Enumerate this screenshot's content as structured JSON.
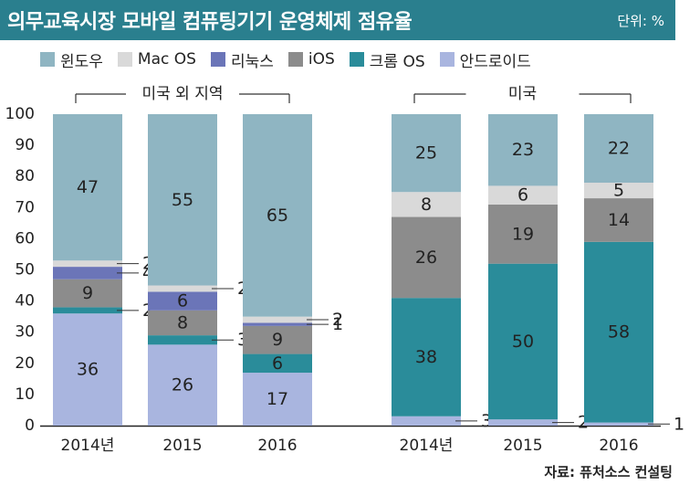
{
  "header": {
    "title": "의무교육시장 모바일 컴퓨팅기기 운영체제 점유율",
    "unit": "단위: %"
  },
  "source": "자료: 퓨처소스 컨설팅",
  "legend": [
    {
      "name": "윈도우",
      "color": "#8fb5c2"
    },
    {
      "name": "Mac OS",
      "color": "#d9d9d9"
    },
    {
      "name": "리눅스",
      "color": "#6b75b8"
    },
    {
      "name": "iOS",
      "color": "#8c8c8c"
    },
    {
      "name": "크롬 OS",
      "color": "#2a8c9a"
    },
    {
      "name": "안드로이드",
      "color": "#a9b5df"
    }
  ],
  "chart_data": {
    "type": "bar",
    "stacked": true,
    "ylim": [
      0,
      100
    ],
    "yticks": [
      0,
      10,
      20,
      30,
      40,
      50,
      60,
      70,
      80,
      90,
      100
    ],
    "groups": [
      {
        "label": "미국 외 지역",
        "categories": [
          "2014년",
          "2015",
          "2016"
        ],
        "series": [
          {
            "name": "안드로이드",
            "values": [
              36,
              26,
              17
            ]
          },
          {
            "name": "크롬 OS",
            "values": [
              2,
              3,
              6
            ]
          },
          {
            "name": "iOS",
            "values": [
              9,
              8,
              9
            ]
          },
          {
            "name": "리눅스",
            "values": [
              4,
              6,
              1
            ]
          },
          {
            "name": "Mac OS",
            "values": [
              2,
              2,
              2
            ]
          },
          {
            "name": "윈도우",
            "values": [
              47,
              55,
              65
            ]
          }
        ]
      },
      {
        "label": "미국",
        "categories": [
          "2014년",
          "2015",
          "2016"
        ],
        "series": [
          {
            "name": "안드로이드",
            "values": [
              3,
              2,
              1
            ]
          },
          {
            "name": "크롬 OS",
            "values": [
              38,
              50,
              58
            ]
          },
          {
            "name": "iOS",
            "values": [
              26,
              19,
              14
            ]
          },
          {
            "name": "리눅스",
            "values": [
              0,
              0,
              0
            ]
          },
          {
            "name": "Mac OS",
            "values": [
              8,
              6,
              5
            ]
          },
          {
            "name": "윈도우",
            "values": [
              25,
              23,
              22
            ]
          }
        ]
      }
    ]
  }
}
